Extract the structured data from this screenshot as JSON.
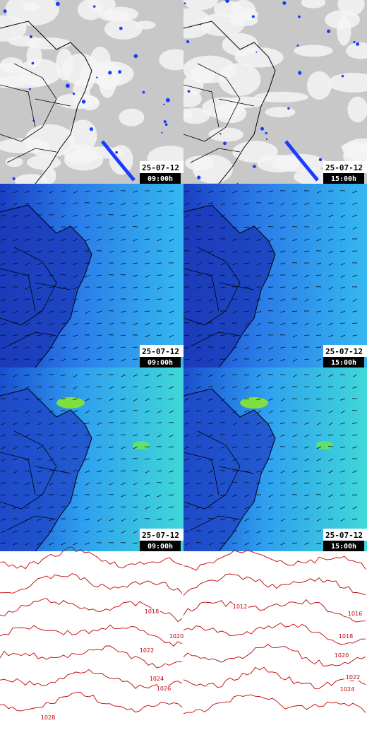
{
  "panels": [
    {
      "date": "25-07-12",
      "time": "09:00h"
    },
    {
      "date": "25-07-12",
      "time": "15:00h"
    },
    {
      "date": "25-07-12",
      "time": "09:00h"
    },
    {
      "date": "25-07-12",
      "time": "15:00h"
    },
    {
      "date": "25-07-12",
      "time": "09:00h"
    },
    {
      "date": "25-07-12",
      "time": "15:00h"
    }
  ],
  "isobar_panels": [
    {
      "labels": [
        "1018",
        "1020",
        "1022",
        "1024",
        "1026",
        "1028"
      ]
    },
    {
      "labels": [
        "1012",
        "1016",
        "1018",
        "1020",
        "1022",
        "1024"
      ]
    }
  ]
}
